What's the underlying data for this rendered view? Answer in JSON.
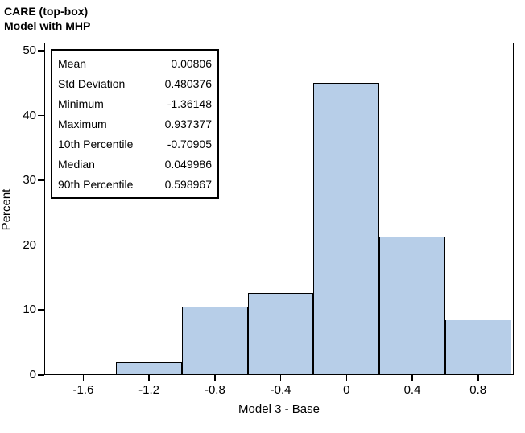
{
  "title": {
    "line1": "CARE (top-box)",
    "line2": "Model with MHP"
  },
  "chart_data": {
    "type": "bar",
    "subtype": "histogram",
    "title": "CARE (top-box) Model with MHP",
    "xlabel": "Model 3 - Base",
    "ylabel": "Percent",
    "bin_centers": [
      -1.2,
      -0.8,
      -0.4,
      0,
      0.4,
      0.8
    ],
    "bin_width": 0.4,
    "values": [
      2.0,
      10.5,
      12.7,
      45.0,
      21.4,
      8.6
    ],
    "x_ticks": [
      -1.6,
      -1.2,
      -0.8,
      -0.4,
      0,
      0.4,
      0.8
    ],
    "x_tick_labels": [
      "-1.6",
      "-1.2",
      "-0.8",
      "-0.4",
      "0",
      "0.4",
      "0.8"
    ],
    "y_ticks": [
      0,
      10,
      20,
      30,
      40,
      50
    ],
    "xlim": [
      -1.84,
      1.02
    ],
    "ylim": [
      0,
      51.2
    ],
    "grid": false,
    "legend": null,
    "bar_fill": "#b7cee8",
    "bar_border": "#000000"
  },
  "stats_box": {
    "rows": [
      {
        "label": "Mean",
        "value": "0.00806"
      },
      {
        "label": "Std Deviation",
        "value": "0.480376"
      },
      {
        "label": "Minimum",
        "value": "-1.36148"
      },
      {
        "label": "Maximum",
        "value": "0.937377"
      },
      {
        "label": "10th Percentile",
        "value": "-0.70905"
      },
      {
        "label": "Median",
        "value": "0.049986"
      },
      {
        "label": "90th Percentile",
        "value": "0.598967"
      }
    ]
  }
}
